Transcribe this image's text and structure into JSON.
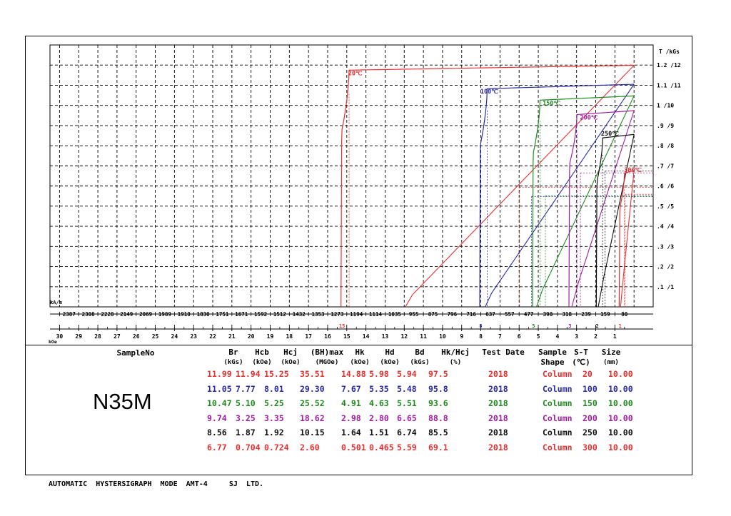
{
  "chart_data": {
    "type": "line",
    "y_unit": "T /kGs",
    "y_ticks": [
      ".1 /1",
      ".2 /2",
      ".3 /3",
      ".4 /4",
      ".5 /5",
      ".6 /6",
      ".7 /7",
      ".8 /8",
      ".9 /9",
      "1 /10",
      "1.1 /11",
      "1.2 /12"
    ],
    "x_unit_top": "kA/m",
    "x_ticks_kam": [
      "2387",
      "2308",
      "2228",
      "2149",
      "2069",
      "1989",
      "1910",
      "1830",
      "1751",
      "1671",
      "1592",
      "1512",
      "1432",
      "1353",
      "1273",
      "1194",
      "1114",
      "1035",
      "955",
      "875",
      "796",
      "716",
      "637",
      "557",
      "477",
      "398",
      "318",
      "239",
      "159",
      "80"
    ],
    "x_unit_bottom": "kOe",
    "x_ticks_koe": [
      "30",
      "29",
      "28",
      "27",
      "26",
      "25",
      "24",
      "23",
      "22",
      "21",
      "20",
      "19",
      "18",
      "17",
      "16",
      "15",
      "14",
      "13",
      "12",
      "11",
      "10",
      "9",
      "8",
      "7",
      "6",
      "5",
      "4",
      "3",
      "2",
      "1"
    ],
    "xlim_koe": [
      30.5,
      -1
    ],
    "ylim_kgs": [
      0,
      13
    ],
    "series": [
      {
        "name": "20℃",
        "color": "#e83030",
        "br": 11.99,
        "hcj": 15.25,
        "hcb": 11.94,
        "hk": 14.88,
        "hd": 5.98,
        "bd": 5.94,
        "hcj_marker": "15"
      },
      {
        "name": "100℃",
        "color": "#2a2aa8",
        "br": 11.05,
        "hcj": 8.01,
        "hcb": 7.77,
        "hk": 7.67,
        "hd": 5.35,
        "bd": 5.48,
        "hcj_marker": "8"
      },
      {
        "name": "150℃",
        "color": "#1f8a1f",
        "br": 10.47,
        "hcj": 5.25,
        "hcb": 5.1,
        "hk": 4.91,
        "hd": 4.63,
        "bd": 5.51,
        "hcj_marker": "5"
      },
      {
        "name": "200℃",
        "color": "#a020a0",
        "br": 9.74,
        "hcj": 3.35,
        "hcb": 3.25,
        "hk": 2.98,
        "hd": 2.8,
        "bd": 6.65,
        "hcj_marker": "3"
      },
      {
        "name": "250℃",
        "color": "#101010",
        "br": 8.56,
        "hcj": 1.92,
        "hcb": 1.87,
        "hk": 1.64,
        "hd": 1.51,
        "bd": 6.74,
        "hcj_marker": "2"
      },
      {
        "name": "300℃",
        "color": "#e83030",
        "br": 6.77,
        "hcj": 0.724,
        "hcb": 0.704,
        "hk": 0.501,
        "hd": 0.465,
        "bd": 5.59,
        "hcj_marker": "1"
      }
    ]
  },
  "table": {
    "sample_no_header": "SampleNo",
    "sample_name": "N35M",
    "columns": [
      {
        "key": "br",
        "label": "Br",
        "unit": "(kGs)"
      },
      {
        "key": "hcb",
        "label": "Hcb",
        "unit": "(kOe)"
      },
      {
        "key": "hcj",
        "label": "Hcj",
        "unit": "(kOe)"
      },
      {
        "key": "bhmax",
        "label": "(BH)max",
        "unit": "(MGOe)"
      },
      {
        "key": "hk",
        "label": "Hk",
        "unit": "(kOe)"
      },
      {
        "key": "hd",
        "label": "Hd",
        "unit": "(kOe)"
      },
      {
        "key": "bd",
        "label": "Bd",
        "unit": "(kGs)"
      },
      {
        "key": "hkhcj",
        "label": "Hk/Hcj",
        "unit": "(%)"
      },
      {
        "key": "date",
        "label": "Test Date",
        "unit": ""
      },
      {
        "key": "shape",
        "label": "Sample",
        "unit": "Shape"
      },
      {
        "key": "st",
        "label": "S-T",
        "unit": "(℃)"
      },
      {
        "key": "size",
        "label": "Size",
        "unit": "(mm)"
      }
    ],
    "rows": [
      {
        "color": "#e83030",
        "br": "11.99",
        "hcb": "11.94",
        "hcj": "15.25",
        "bhmax": "35.51",
        "hk": "14.88",
        "hd": "5.98",
        "bd": "5.94",
        "hkhcj": "97.5",
        "date": "2018",
        "shape": "Column",
        "st": "20",
        "size": "10.00"
      },
      {
        "color": "#2a2aa8",
        "br": "11.05",
        "hcb": "7.77",
        "hcj": "8.01",
        "bhmax": "29.30",
        "hk": "7.67",
        "hd": "5.35",
        "bd": "5.48",
        "hkhcj": "95.8",
        "date": "2018",
        "shape": "Column",
        "st": "100",
        "size": "10.00"
      },
      {
        "color": "#1f8a1f",
        "br": "10.47",
        "hcb": "5.10",
        "hcj": "5.25",
        "bhmax": "25.52",
        "hk": "4.91",
        "hd": "4.63",
        "bd": "5.51",
        "hkhcj": "93.6",
        "date": "2018",
        "shape": "Column",
        "st": "150",
        "size": "10.00"
      },
      {
        "color": "#a020a0",
        "br": "9.74",
        "hcb": "3.25",
        "hcj": "3.35",
        "bhmax": "18.62",
        "hk": "2.98",
        "hd": "2.80",
        "bd": "6.65",
        "hkhcj": "88.8",
        "date": "2018",
        "shape": "Column",
        "st": "200",
        "size": "10.00"
      },
      {
        "color": "#101010",
        "br": "8.56",
        "hcb": "1.87",
        "hcj": "1.92",
        "bhmax": "10.15",
        "hk": "1.64",
        "hd": "1.51",
        "bd": "6.74",
        "hkhcj": "85.5",
        "date": "2018",
        "shape": "Column",
        "st": "250",
        "size": "10.00"
      },
      {
        "color": "#e83030",
        "br": "6.77",
        "hcb": "0.704",
        "hcj": "0.724",
        "bhmax": "2.60",
        "hk": "0.501",
        "hd": "0.465",
        "bd": "5.59",
        "hkhcj": "69.1",
        "date": "2018",
        "shape": "Column",
        "st": "300",
        "size": "10.00"
      }
    ]
  },
  "footer": {
    "text": "AUTOMATIC  HYSTERSIGRAPH  MODE  AMT-4     SJ  LTD."
  }
}
